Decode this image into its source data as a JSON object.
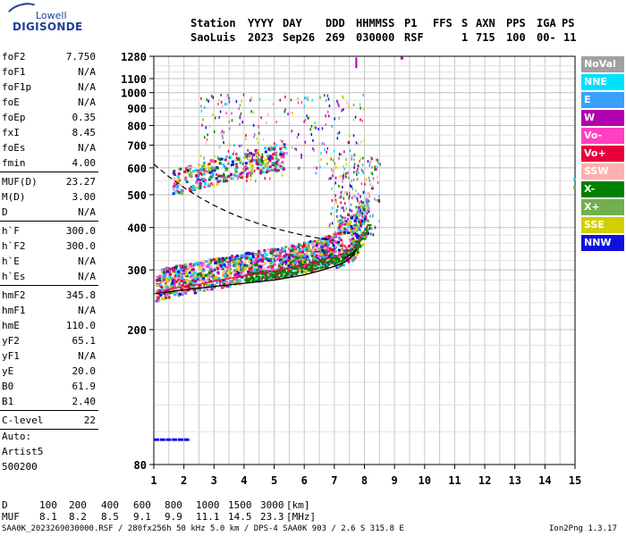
{
  "logo": {
    "line1": "Lowell",
    "line2": "DIGISONDE"
  },
  "header": {
    "row1": [
      "Station",
      "YYYY",
      "DAY",
      "DDD",
      "HHMMSS",
      "P1",
      "FFS",
      "S",
      "AXN",
      "PPS",
      "IGA",
      "PS"
    ],
    "row2": [
      "SaoLuis",
      "2023",
      "Sep26",
      "269",
      "030000",
      "RSF",
      "1",
      "715",
      "100",
      "00-",
      "11"
    ]
  },
  "params_group1": [
    {
      "name": "foF2",
      "value": "7.750"
    },
    {
      "name": "foF1",
      "value": "N/A"
    },
    {
      "name": "foF1p",
      "value": "N/A"
    },
    {
      "name": "foE",
      "value": "N/A"
    },
    {
      "name": "foEp",
      "value": "0.35"
    },
    {
      "name": "fxI",
      "value": "8.45"
    },
    {
      "name": "foEs",
      "value": "N/A"
    },
    {
      "name": "fmin",
      "value": "4.00"
    }
  ],
  "params_group2": [
    {
      "name": "MUF(D)",
      "value": "23.27"
    },
    {
      "name": "M(D)",
      "value": "3.00"
    },
    {
      "name": "D",
      "value": "N/A"
    }
  ],
  "params_group3": [
    {
      "name": "h`F",
      "value": "300.0"
    },
    {
      "name": "h`F2",
      "value": "300.0"
    },
    {
      "name": "h`E",
      "value": "N/A"
    },
    {
      "name": "h`Es",
      "value": "N/A"
    }
  ],
  "params_group4": [
    {
      "name": "hmF2",
      "value": "345.8"
    },
    {
      "name": "hmF1",
      "value": "N/A"
    },
    {
      "name": "hmE",
      "value": "110.0"
    },
    {
      "name": "yF2",
      "value": "65.1"
    },
    {
      "name": "yF1",
      "value": "N/A"
    },
    {
      "name": "yE",
      "value": "20.0"
    },
    {
      "name": "B0",
      "value": "61.9"
    },
    {
      "name": "B1",
      "value": "2.40"
    }
  ],
  "params_group5": [
    {
      "name": "C-level",
      "value": "22"
    }
  ],
  "autoscale": {
    "line1": "Auto:",
    "line2": "Artist5",
    "line3": "500200"
  },
  "muf_table": {
    "d_label": "D",
    "d_values": [
      "100",
      "200",
      "400",
      "600",
      "800",
      "1000",
      "1500",
      "3000"
    ],
    "d_unit": "[km]",
    "muf_label": "MUF",
    "muf_values": [
      "8.1",
      "8.2",
      "8.5",
      "9.1",
      "9.9",
      "11.1",
      "14.5",
      "23.3"
    ],
    "muf_unit": "[MHz]"
  },
  "file_info": "SAA0K_2023269030000.RSF / 280fx256h 50 kHz 5.0 km / DPS-4 SAA0K 903 / 2.6 S 315.8 E",
  "version": "Ion2Png 1.3.17",
  "colors": {
    "NoVal": "#a0a0a0",
    "NNE": "#00e0ff",
    "E": "#3aa0ff",
    "W": "#b000b0",
    "Vo-": "#ff40c0",
    "Vo+": "#e8003c",
    "SSW": "#ffb0b0",
    "X-": "#008000",
    "X+": "#70b050",
    "SSE": "#d0d000",
    "NNW": "#1010e0"
  },
  "chart_data": {
    "type": "scatter",
    "title": "",
    "xlabel": "",
    "ylabel": "",
    "xlim": [
      1,
      15
    ],
    "ylim": [
      80,
      1280
    ],
    "x_ticks": [
      1,
      2,
      3,
      4,
      5,
      6,
      7,
      8,
      9,
      10,
      11,
      12,
      13,
      14,
      15
    ],
    "y_ticks": [
      80,
      200,
      300,
      400,
      500,
      600,
      700,
      800,
      900,
      1000,
      1100,
      1280
    ],
    "y_scale": "log",
    "grid": true,
    "legend": [
      "NoVal",
      "NNE",
      "E",
      "W",
      "Vo-",
      "Vo+",
      "SSW",
      "X-",
      "X+",
      "SSE",
      "NNW"
    ],
    "legend_position": "right",
    "ordinary_trace": {
      "x": [
        1.0,
        1.5,
        2.0,
        2.5,
        3.0,
        3.5,
        4.0,
        4.5,
        5.0,
        5.5,
        6.0,
        6.5,
        7.0,
        7.3,
        7.6,
        7.75,
        7.9,
        8.1
      ],
      "h": [
        255,
        263,
        268,
        272,
        278,
        283,
        288,
        293,
        298,
        303,
        310,
        318,
        328,
        336,
        346,
        360,
        378,
        405
      ]
    },
    "profile_solid": {
      "x": [
        1.0,
        2.0,
        3.0,
        4.0,
        5.0,
        6.0,
        6.5,
        7.0,
        7.4,
        7.6,
        7.75,
        7.6,
        7.3
      ],
      "h": [
        255,
        262,
        268,
        274,
        280,
        290,
        298,
        307,
        318,
        330,
        345,
        335,
        325
      ]
    },
    "profile_dashed": {
      "x": [
        1.0,
        1.5,
        2.0,
        2.5,
        3.0,
        3.5,
        4.0,
        4.5,
        5.0,
        5.5,
        6.0,
        6.5,
        7.0
      ],
      "h": [
        615,
        565,
        525,
        492,
        465,
        443,
        425,
        410,
        398,
        388,
        379,
        372,
        367
      ]
    },
    "f2_second_hop": {
      "x": [
        1.6,
        2.0,
        2.5,
        3.0,
        3.5,
        4.0,
        4.5,
        5.0,
        5.3
      ],
      "h": [
        530,
        540,
        555,
        570,
        585,
        600,
        612,
        625,
        632
      ]
    },
    "low_echoes": {
      "x": [
        1.0,
        1.2,
        1.4,
        1.6,
        1.8,
        2.0
      ],
      "h": [
        95,
        95,
        95,
        95,
        95,
        95
      ]
    }
  }
}
